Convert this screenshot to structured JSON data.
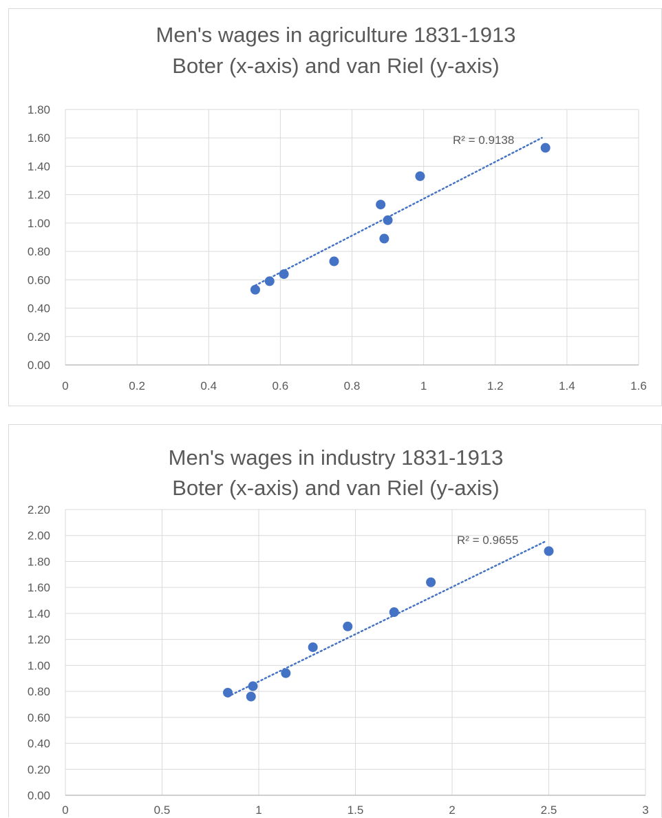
{
  "chart_data": [
    {
      "type": "scatter",
      "title_lines": [
        "Men's wages in agriculture 1831-1913",
        "Boter (x-axis) and van Riel (y-axis)"
      ],
      "xlabel": "",
      "ylabel": "",
      "xlim": [
        0,
        1.6
      ],
      "ylim": [
        0,
        1.8
      ],
      "x_ticks": [
        0,
        0.2,
        0.4,
        0.6,
        0.8,
        1,
        1.2,
        1.4,
        1.6
      ],
      "x_tick_labels": [
        "0",
        "0.2",
        "0.4",
        "0.6",
        "0.8",
        "1",
        "1.2",
        "1.4",
        "1.6"
      ],
      "y_ticks": [
        0,
        0.2,
        0.4,
        0.6,
        0.8,
        1.0,
        1.2,
        1.4,
        1.6,
        1.8
      ],
      "y_tick_labels": [
        "0.00",
        "0.20",
        "0.40",
        "0.60",
        "0.80",
        "1.00",
        "1.20",
        "1.40",
        "1.60",
        "1.80"
      ],
      "grid": true,
      "legend": "none",
      "marker_color": "#4472c4",
      "trendline_color": "#4472c4",
      "points": [
        {
          "x": 0.53,
          "y": 0.53
        },
        {
          "x": 0.57,
          "y": 0.59
        },
        {
          "x": 0.61,
          "y": 0.64
        },
        {
          "x": 0.75,
          "y": 0.73
        },
        {
          "x": 0.88,
          "y": 1.13
        },
        {
          "x": 0.89,
          "y": 0.89
        },
        {
          "x": 0.9,
          "y": 1.02
        },
        {
          "x": 0.99,
          "y": 1.33
        },
        {
          "x": 1.34,
          "y": 1.53
        }
      ],
      "trendline": {
        "type": "linear",
        "x_start": 0.53,
        "y_start": 0.56,
        "x_end": 1.33,
        "y_end": 1.6
      },
      "r2_label": "R² = 0.9138"
    },
    {
      "type": "scatter",
      "title_lines": [
        "Men's wages in industry 1831-1913",
        "Boter (x-axis) and van Riel (y-axis)"
      ],
      "xlabel": "",
      "ylabel": "",
      "xlim": [
        0,
        3
      ],
      "ylim": [
        0,
        2.2
      ],
      "x_ticks": [
        0,
        0.5,
        1,
        1.5,
        2,
        2.5,
        3
      ],
      "x_tick_labels": [
        "0",
        "0.5",
        "1",
        "1.5",
        "2",
        "2.5",
        "3"
      ],
      "y_ticks": [
        0,
        0.2,
        0.4,
        0.6,
        0.8,
        1.0,
        1.2,
        1.4,
        1.6,
        1.8,
        2.0,
        2.2
      ],
      "y_tick_labels": [
        "0.00",
        "0.20",
        "0.40",
        "0.60",
        "0.80",
        "1.00",
        "1.20",
        "1.40",
        "1.60",
        "1.80",
        "2.00",
        "2.20"
      ],
      "grid": true,
      "legend": "none",
      "marker_color": "#4472c4",
      "trendline_color": "#4472c4",
      "points": [
        {
          "x": 0.84,
          "y": 0.79
        },
        {
          "x": 0.96,
          "y": 0.76
        },
        {
          "x": 0.97,
          "y": 0.84
        },
        {
          "x": 1.14,
          "y": 0.94
        },
        {
          "x": 1.28,
          "y": 1.14
        },
        {
          "x": 1.46,
          "y": 1.3
        },
        {
          "x": 1.7,
          "y": 1.41
        },
        {
          "x": 1.89,
          "y": 1.64
        },
        {
          "x": 2.5,
          "y": 1.88
        }
      ],
      "trendline": {
        "type": "linear",
        "x_start": 0.84,
        "y_start": 0.76,
        "x_end": 2.49,
        "y_end": 1.96
      },
      "r2_label": "R² = 0.9655"
    }
  ]
}
